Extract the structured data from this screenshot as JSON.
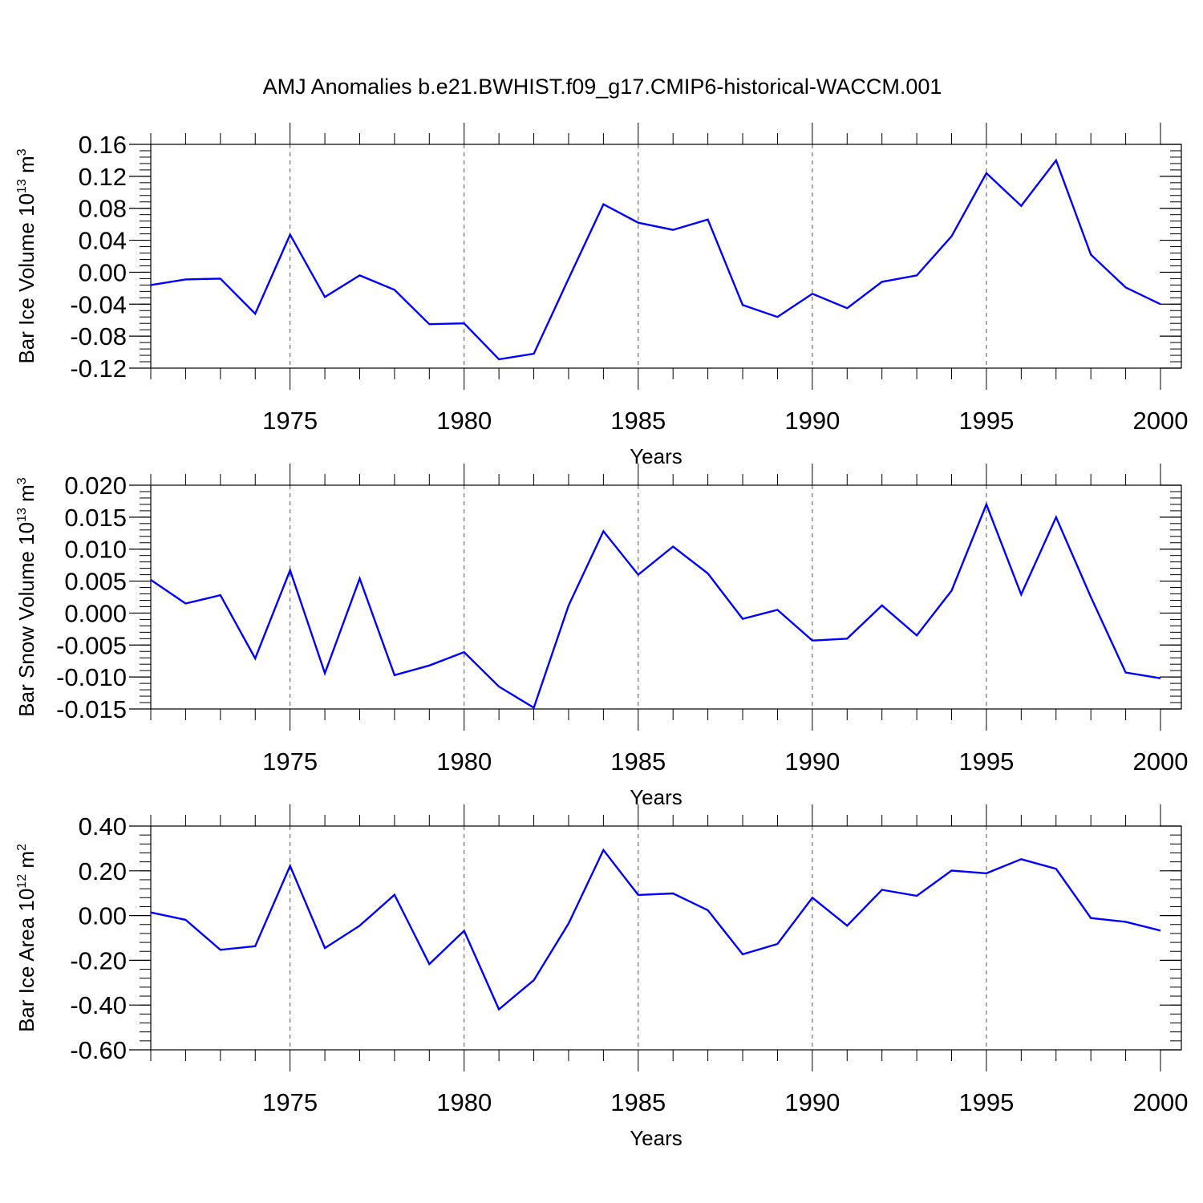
{
  "title": "AMJ Anomalies b.e21.BWHIST.f09_g17.CMIP6-historical-WACCM.001",
  "colors": {
    "line": "#0000ff",
    "axis": "#000000",
    "grid": "#555555"
  },
  "chart_data": [
    {
      "type": "line",
      "ylabel": {
        "text": "Bar Ice Volume 10",
        "sup": "13",
        "unit": " m",
        "unit_sup": "3"
      },
      "xlabel": "Years",
      "xlim": [
        1971,
        2000
      ],
      "ylim": [
        -0.12,
        0.16
      ],
      "ytick_values": [
        -0.12,
        -0.08,
        -0.04,
        0.0,
        0.04,
        0.08,
        0.12,
        0.16
      ],
      "ytick_labels": [
        "-0.12",
        "-0.08",
        "-0.04",
        "0.00",
        "0.04",
        "0.08",
        "0.12",
        "0.16"
      ],
      "ytick_minor_step": 0.008,
      "xtick_values": [
        1975,
        1980,
        1985,
        1990,
        1995,
        2000
      ],
      "xtick_labels": [
        "1975",
        "1980",
        "1985",
        "1990",
        "1995",
        "2000"
      ],
      "grid": "vertical dashed at major x ticks",
      "x": [
        1971,
        1972,
        1973,
        1974,
        1975,
        1976,
        1977,
        1978,
        1979,
        1980,
        1981,
        1982,
        1983,
        1984,
        1985,
        1986,
        1987,
        1988,
        1989,
        1990,
        1991,
        1992,
        1993,
        1994,
        1995,
        1996,
        1997,
        1998,
        1999,
        2000
      ],
      "y": [
        -0.016,
        -0.009,
        -0.008,
        -0.052,
        0.047,
        -0.031,
        -0.004,
        -0.022,
        -0.065,
        -0.064,
        -0.109,
        -0.102,
        -0.008,
        0.085,
        0.062,
        0.053,
        0.066,
        -0.041,
        -0.056,
        -0.027,
        -0.045,
        -0.012,
        -0.004,
        0.045,
        0.124,
        0.083,
        0.14,
        0.022,
        -0.019,
        -0.04
      ]
    },
    {
      "type": "line",
      "ylabel": {
        "text": "Bar Snow Volume 10",
        "sup": "13",
        "unit": " m",
        "unit_sup": "3"
      },
      "xlabel": "Years",
      "xlim": [
        1971,
        2000
      ],
      "ylim": [
        -0.015,
        0.02
      ],
      "ytick_values": [
        -0.015,
        -0.01,
        -0.005,
        0.0,
        0.005,
        0.01,
        0.015,
        0.02
      ],
      "ytick_labels": [
        "-0.015",
        "-0.010",
        "-0.005",
        "0.000",
        "0.005",
        "0.010",
        "0.015",
        "0.020"
      ],
      "ytick_minor_step": 0.001,
      "xtick_values": [
        1975,
        1980,
        1985,
        1990,
        1995,
        2000
      ],
      "xtick_labels": [
        "1975",
        "1980",
        "1985",
        "1990",
        "1995",
        "2000"
      ],
      "grid": "vertical dashed at major x ticks",
      "x": [
        1971,
        1972,
        1973,
        1974,
        1975,
        1976,
        1977,
        1978,
        1979,
        1980,
        1981,
        1982,
        1983,
        1984,
        1985,
        1986,
        1987,
        1988,
        1989,
        1990,
        1991,
        1992,
        1993,
        1994,
        1995,
        1996,
        1997,
        1998,
        1999,
        2000
      ],
      "y": [
        0.0052,
        0.0015,
        0.0028,
        -0.0071,
        0.0067,
        -0.0094,
        0.0054,
        -0.0097,
        -0.0082,
        -0.0061,
        -0.0115,
        -0.0148,
        0.0012,
        0.0128,
        0.006,
        0.0104,
        0.0062,
        -0.0009,
        0.0005,
        -0.0043,
        -0.004,
        0.0012,
        -0.0035,
        0.0035,
        0.017,
        0.0029,
        0.015,
        0.0025,
        -0.0093,
        -0.0102
      ]
    },
    {
      "type": "line",
      "ylabel": {
        "text": "Bar Ice Area 10",
        "sup": "12",
        "unit": " m",
        "unit_sup": "2"
      },
      "xlabel": "Years",
      "xlim": [
        1971,
        2000
      ],
      "ylim": [
        -0.6,
        0.4
      ],
      "ytick_values": [
        -0.6,
        -0.4,
        -0.2,
        0.0,
        0.2,
        0.4
      ],
      "ytick_labels": [
        "-0.60",
        "-0.40",
        "-0.20",
        "0.00",
        "0.20",
        "0.40"
      ],
      "ytick_minor_step": 0.04,
      "xtick_values": [
        1975,
        1980,
        1985,
        1990,
        1995,
        2000
      ],
      "xtick_labels": [
        "1975",
        "1980",
        "1985",
        "1990",
        "1995",
        "2000"
      ],
      "grid": "vertical dashed at major x ticks",
      "x": [
        1971,
        1972,
        1973,
        1974,
        1975,
        1976,
        1977,
        1978,
        1979,
        1980,
        1981,
        1982,
        1983,
        1984,
        1985,
        1986,
        1987,
        1988,
        1989,
        1990,
        1991,
        1992,
        1993,
        1994,
        1995,
        1996,
        1997,
        1998,
        1999,
        2000
      ],
      "y": [
        0.014,
        -0.019,
        -0.153,
        -0.137,
        0.222,
        -0.145,
        -0.045,
        0.093,
        -0.217,
        -0.068,
        -0.419,
        -0.289,
        -0.035,
        0.293,
        0.092,
        0.099,
        0.024,
        -0.173,
        -0.127,
        0.08,
        -0.045,
        0.115,
        0.088,
        0.201,
        0.189,
        0.252,
        0.209,
        -0.011,
        -0.028,
        -0.067
      ]
    }
  ]
}
